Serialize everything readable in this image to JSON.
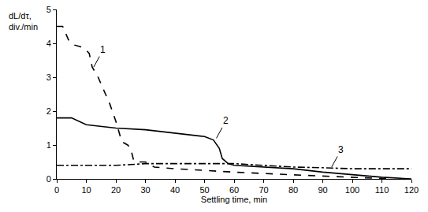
{
  "chart_data": {
    "type": "line",
    "x_label": "Settling time, min",
    "y_label": "dL/dτ,\ndiv./min",
    "xlim": [
      0,
      120
    ],
    "xticks": [
      0,
      10,
      20,
      30,
      40,
      50,
      60,
      70,
      80,
      90,
      100,
      110,
      120
    ],
    "ylim": [
      0,
      5
    ],
    "yticks": [
      0,
      1,
      2,
      3,
      4,
      5
    ],
    "grid": false,
    "series": [
      {
        "name": "1",
        "color": "#000000",
        "line_style": "dashed",
        "x": [
          0,
          2,
          4,
          6,
          8,
          10,
          11,
          12,
          14,
          16,
          18,
          20,
          22,
          24,
          25,
          26,
          27,
          30,
          32,
          33,
          40,
          60,
          80,
          100,
          110,
          113
        ],
        "values": [
          4.5,
          4.5,
          4.1,
          3.95,
          3.9,
          3.8,
          3.7,
          3.3,
          3.0,
          2.6,
          2.2,
          1.7,
          1.1,
          1.0,
          0.9,
          0.55,
          0.5,
          0.5,
          0.4,
          0.35,
          0.3,
          0.2,
          0.12,
          0.05,
          0.02,
          0
        ]
      },
      {
        "name": "2",
        "color": "#000000",
        "line_style": "solid",
        "x": [
          0,
          5,
          10,
          20,
          30,
          40,
          50,
          53,
          55,
          56,
          58,
          60,
          70,
          80,
          90,
          100,
          110,
          120
        ],
        "values": [
          1.8,
          1.8,
          1.6,
          1.5,
          1.45,
          1.35,
          1.25,
          1.15,
          0.9,
          0.6,
          0.45,
          0.4,
          0.35,
          0.3,
          0.2,
          0.12,
          0.05,
          0
        ]
      },
      {
        "name": "3",
        "color": "#000000",
        "line_style": "dashdot",
        "x": [
          0,
          20,
          30,
          40,
          50,
          60,
          70,
          80,
          90,
          100,
          110,
          120
        ],
        "values": [
          0.4,
          0.4,
          0.45,
          0.45,
          0.45,
          0.45,
          0.4,
          0.35,
          0.33,
          0.3,
          0.3,
          0.3
        ]
      }
    ],
    "annotations": [
      {
        "text": "1",
        "x": 12.5,
        "y": 3.3
      },
      {
        "text": "2",
        "x": 54,
        "y": 1.2
      },
      {
        "text": "3",
        "x": 93,
        "y": 0.35
      }
    ]
  }
}
